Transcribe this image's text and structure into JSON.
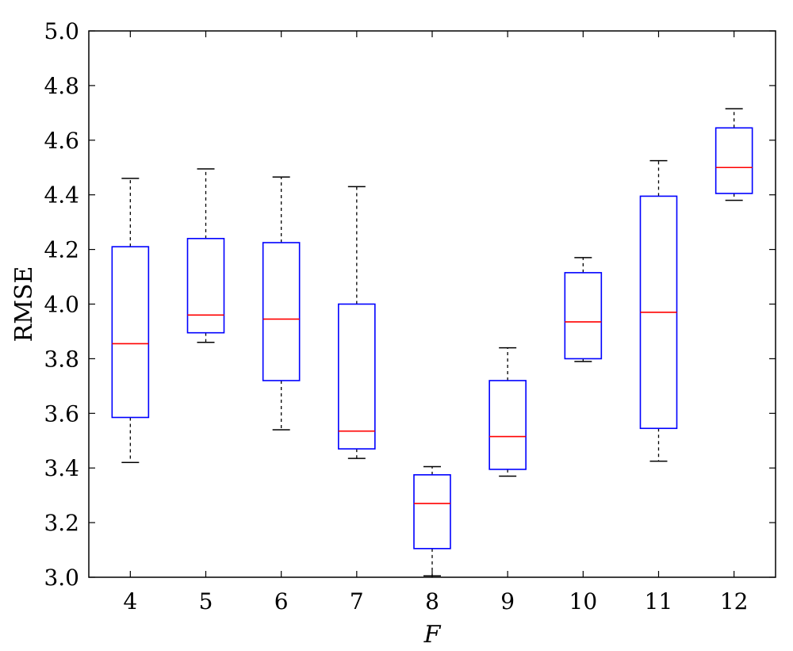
{
  "chart_data": {
    "type": "box",
    "xlabel": "F",
    "ylabel": "RMSE",
    "ylim": [
      3.0,
      5.0
    ],
    "yticks": [
      "3.0",
      "3.2",
      "3.4",
      "3.6",
      "3.8",
      "4.0",
      "4.2",
      "4.4",
      "4.6",
      "4.8",
      "5.0"
    ],
    "categories": [
      "4",
      "5",
      "6",
      "7",
      "8",
      "9",
      "10",
      "11",
      "12"
    ],
    "boxes": [
      {
        "category": "4",
        "whisker_low": 3.42,
        "q1": 3.585,
        "median": 3.855,
        "q3": 4.21,
        "whisker_high": 4.46
      },
      {
        "category": "5",
        "whisker_low": 3.86,
        "q1": 3.895,
        "median": 3.96,
        "q3": 4.24,
        "whisker_high": 4.495
      },
      {
        "category": "6",
        "whisker_low": 3.54,
        "q1": 3.72,
        "median": 3.945,
        "q3": 4.225,
        "whisker_high": 4.465
      },
      {
        "category": "7",
        "whisker_low": 3.435,
        "q1": 3.47,
        "median": 3.535,
        "q3": 4.0,
        "whisker_high": 4.43
      },
      {
        "category": "8",
        "whisker_low": 3.005,
        "q1": 3.105,
        "median": 3.27,
        "q3": 3.375,
        "whisker_high": 3.405
      },
      {
        "category": "9",
        "whisker_low": 3.37,
        "q1": 3.395,
        "median": 3.515,
        "q3": 3.72,
        "whisker_high": 3.84
      },
      {
        "category": "10",
        "whisker_low": 3.79,
        "q1": 3.8,
        "median": 3.935,
        "q3": 4.115,
        "whisker_high": 4.17
      },
      {
        "category": "11",
        "whisker_low": 3.425,
        "q1": 3.545,
        "median": 3.97,
        "q3": 4.395,
        "whisker_high": 4.525
      },
      {
        "category": "12",
        "whisker_low": 4.38,
        "q1": 4.405,
        "median": 4.5,
        "q3": 4.645,
        "whisker_high": 4.715
      }
    ],
    "colors": {
      "box": "#0000ff",
      "median": "#ff0000",
      "whisker": "#000000",
      "axes": "#000000"
    },
    "grid": false,
    "legend": "none"
  }
}
